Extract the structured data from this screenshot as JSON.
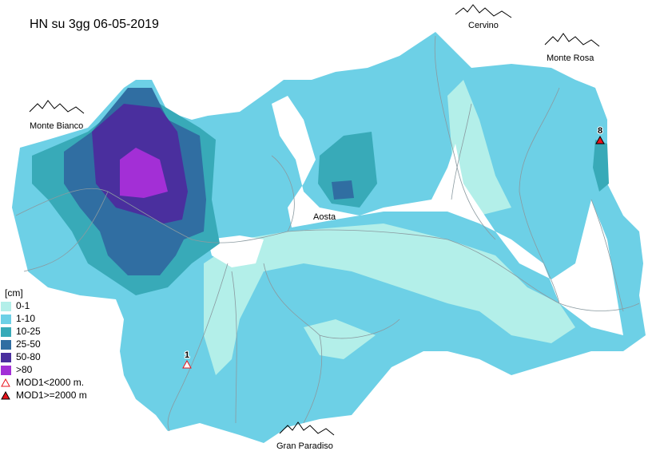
{
  "title": "HN su 3gg 06-05-2019",
  "places": [
    {
      "label": "Cervino"
    },
    {
      "label": "Monte Rosa"
    },
    {
      "label": "Monte Bianco"
    },
    {
      "label": "Aosta"
    },
    {
      "label": "Gran Paradiso"
    }
  ],
  "legend": {
    "unit": "[cm]",
    "items": [
      {
        "label": "0-1",
        "color": "#b3efe9"
      },
      {
        "label": "1-10",
        "color": "#6dd0e6"
      },
      {
        "label": "10-25",
        "color": "#38aab8"
      },
      {
        "label": "25-50",
        "color": "#306ea2"
      },
      {
        "label": "50-80",
        "color": "#4a2f9e"
      },
      {
        "label": ">80",
        "color": "#a32fd6"
      }
    ],
    "markers": [
      {
        "label": "MOD1<2000 m.",
        "color": "#e8141c",
        "filled": false
      },
      {
        "label": "MOD1>=2000 m",
        "color": "#e8141c",
        "filled": true
      }
    ]
  },
  "stations": [
    {
      "label": "1",
      "marker": 0
    },
    {
      "label": "8",
      "marker": 1
    }
  ]
}
